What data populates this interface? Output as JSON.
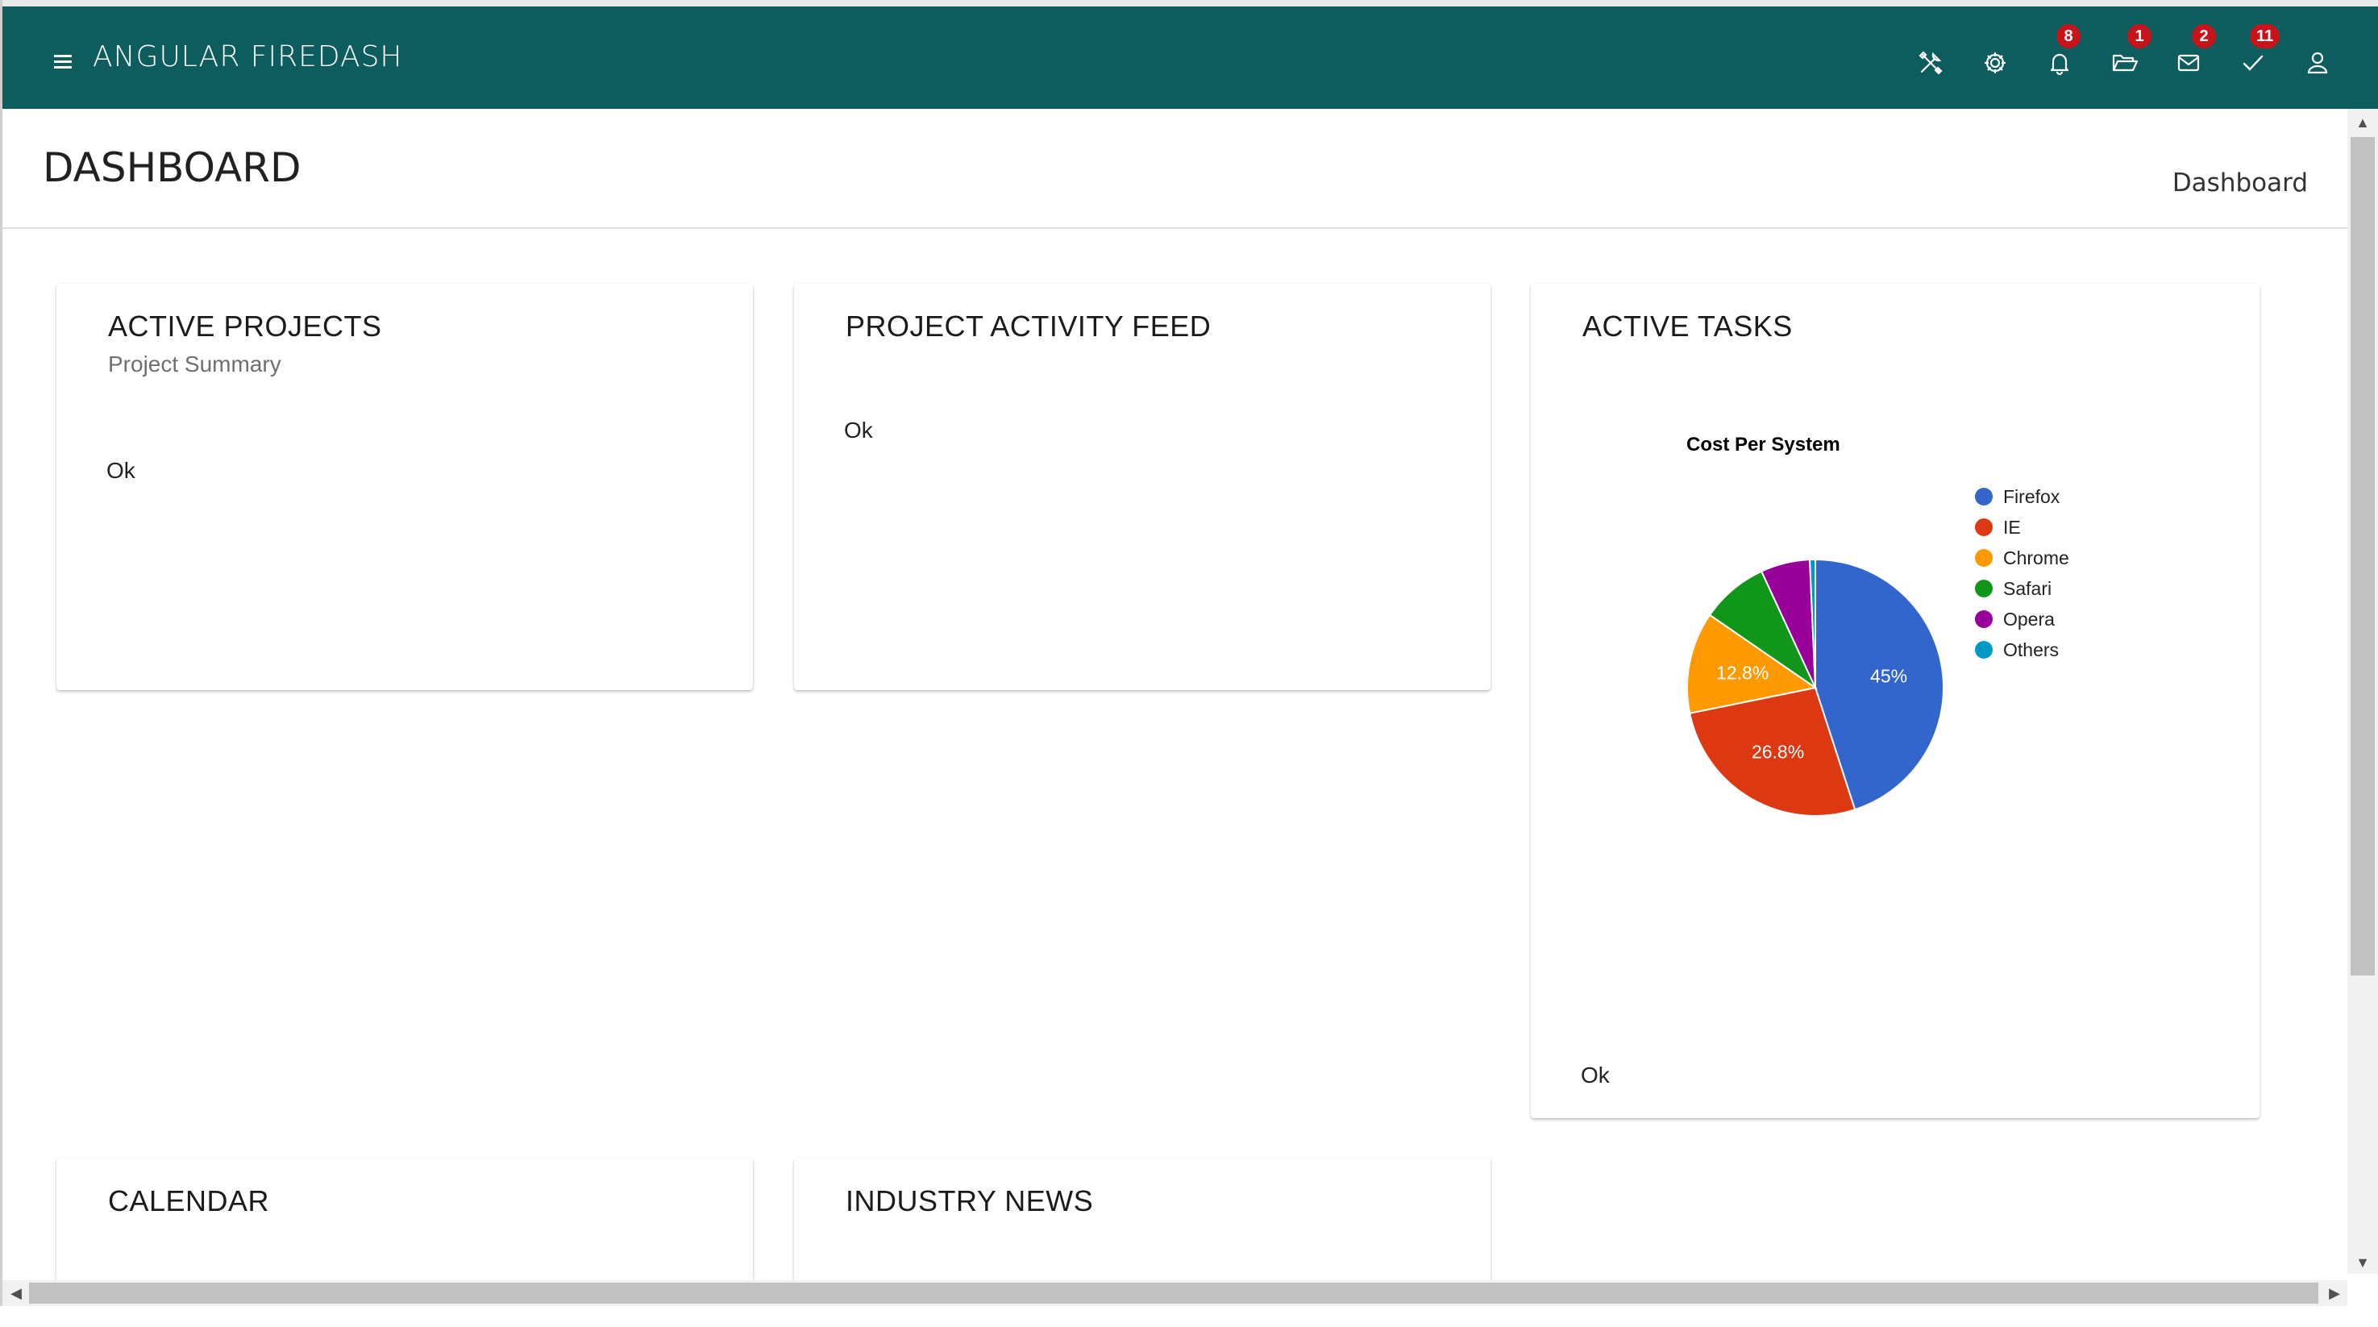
{
  "app": {
    "title": "ANGULAR FIREDASH"
  },
  "toolbar": {
    "icons": [
      {
        "name": "tools-icon"
      },
      {
        "name": "gear-icon"
      },
      {
        "name": "bell-icon",
        "badge": "8"
      },
      {
        "name": "folder-open-icon",
        "badge": "1"
      },
      {
        "name": "mail-icon",
        "badge": "2"
      },
      {
        "name": "checkmark-icon",
        "badge": "11"
      },
      {
        "name": "user-icon"
      }
    ],
    "badges": {
      "notifications": "8",
      "folders": "1",
      "mail": "2",
      "tasks": "11"
    }
  },
  "header": {
    "title": "DASHBOARD",
    "breadcrumb": "Dashboard"
  },
  "cards": {
    "active_projects": {
      "title": "ACTIVE PROJECTS",
      "subtitle": "Project Summary",
      "action": "Ok"
    },
    "activity_feed": {
      "title": "PROJECT ACTIVITY FEED",
      "action": "Ok"
    },
    "active_tasks": {
      "title": "ACTIVE TASKS",
      "action": "Ok"
    },
    "calendar": {
      "title": "CALENDAR"
    },
    "industry_news": {
      "title": "INDUSTRY NEWS"
    }
  },
  "colors": {
    "topbar": "#0d5c5e",
    "badge": "#c7141a"
  },
  "chart_data": {
    "type": "pie",
    "title": "Cost Per System",
    "legend_position": "right",
    "categories": [
      "Firefox",
      "IE",
      "Chrome",
      "Safari",
      "Opera",
      "Others"
    ],
    "values": [
      45.0,
      26.8,
      12.8,
      8.5,
      6.2,
      0.7
    ],
    "labels": [
      "45%",
      "26.8%",
      "12.8%",
      "",
      "",
      ""
    ],
    "colors": [
      "#3366cc",
      "#dc3912",
      "#ff9900",
      "#109618",
      "#990099",
      "#0099c6"
    ]
  }
}
